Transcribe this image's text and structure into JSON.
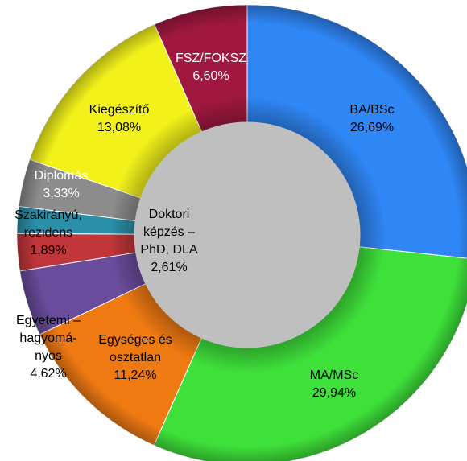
{
  "chart_data": {
    "type": "donut",
    "categories": [
      "BA/BSc",
      "MA/MSc",
      "Egységes és\nosztatlan",
      "Egyetemi –\nhagyomá-\nnyos",
      "Doktori\nképzés –\nPhD, DLA",
      "Szakirányú,\nrezidens",
      "Diplomás",
      "Kiegészítő",
      "FSZ/FOKSZ"
    ],
    "values": [
      26.69,
      29.94,
      11.24,
      4.62,
      2.61,
      1.89,
      3.33,
      13.08,
      6.6
    ],
    "value_labels": [
      "26,69%",
      "29,94%",
      "11,24%",
      "4,62%",
      "2,61%",
      "1,89%",
      "3,33%",
      "13,08%",
      "6,60%"
    ],
    "colors": [
      "#2f86f5",
      "#3ee03a",
      "#f07a12",
      "#6a4c9c",
      "#c0363a",
      "#2a8fa8",
      "#8c8c8c",
      "#f2f21a",
      "#a0183f"
    ]
  }
}
